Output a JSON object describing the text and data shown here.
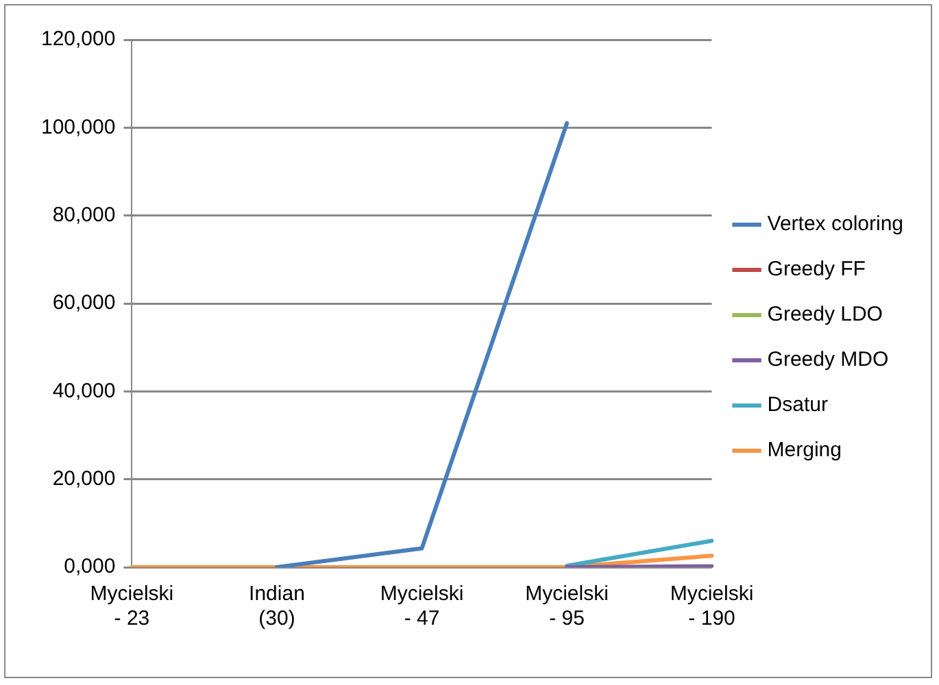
{
  "chart_data": {
    "type": "line",
    "categories": [
      "Mycielski - 23",
      "Indian (30)",
      "Mycielski - 47",
      "Mycielski - 95",
      "Mycielski - 190"
    ],
    "series": [
      {
        "name": "Vertex coloring",
        "color": "#4a7ebb",
        "values": [
          null,
          0,
          4300,
          101000,
          null
        ]
      },
      {
        "name": "Greedy FF",
        "color": "#be4b48",
        "values": [
          null,
          null,
          null,
          null,
          null
        ]
      },
      {
        "name": "Greedy LDO",
        "color": "#98b954",
        "values": [
          null,
          null,
          null,
          null,
          null
        ]
      },
      {
        "name": "Greedy MDO",
        "color": "#7d60a0",
        "values": [
          null,
          null,
          null,
          0,
          200
        ]
      },
      {
        "name": "Dsatur",
        "color": "#46aac5",
        "values": [
          null,
          null,
          null,
          300,
          6000
        ]
      },
      {
        "name": "Merging",
        "color": "#f79646",
        "values": [
          0,
          0,
          0,
          0,
          2600
        ]
      }
    ],
    "ylim": [
      0,
      120000
    ],
    "yticks": [
      {
        "value": 0,
        "label": "0,000"
      },
      {
        "value": 20000,
        "label": "20,000"
      },
      {
        "value": 40000,
        "label": "40,000"
      },
      {
        "value": 60000,
        "label": "60,000"
      },
      {
        "value": 80000,
        "label": "80,000"
      },
      {
        "value": 100000,
        "label": "100,000"
      },
      {
        "value": 120000,
        "label": "120,000"
      }
    ],
    "grid": "y",
    "legend": "right",
    "marker": "none",
    "line_style": "solid"
  }
}
